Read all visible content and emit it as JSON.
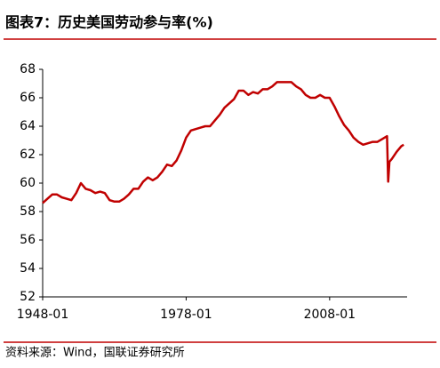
{
  "chart_data": {
    "type": "line",
    "title": "图表7：历史美国劳动参与率(%)",
    "source": "资料来源：Wind，国联证券研究所",
    "color": "#c00000",
    "x": [
      1948,
      1949,
      1950,
      1951,
      1952,
      1953,
      1954,
      1955,
      1956,
      1957,
      1958,
      1959,
      1960,
      1961,
      1962,
      1963,
      1964,
      1965,
      1966,
      1967,
      1968,
      1969,
      1970,
      1971,
      1972,
      1973,
      1974,
      1975,
      1976,
      1977,
      1978,
      1979,
      1980,
      1981,
      1982,
      1983,
      1984,
      1985,
      1986,
      1987,
      1988,
      1989,
      1990,
      1991,
      1992,
      1993,
      1994,
      1995,
      1996,
      1997,
      1998,
      1999,
      2000,
      2001,
      2002,
      2003,
      2004,
      2005,
      2006,
      2007,
      2008,
      2009,
      2010,
      2011,
      2012,
      2013,
      2014,
      2015,
      2016,
      2017,
      2018,
      2019,
      2020,
      2020.25,
      2020.5,
      2021,
      2022,
      2023,
      2023.5
    ],
    "values": [
      58.6,
      58.9,
      59.2,
      59.2,
      59.0,
      58.9,
      58.8,
      59.3,
      60.0,
      59.6,
      59.5,
      59.3,
      59.4,
      59.3,
      58.8,
      58.7,
      58.7,
      58.9,
      59.2,
      59.6,
      59.6,
      60.1,
      60.4,
      60.2,
      60.4,
      60.8,
      61.3,
      61.2,
      61.6,
      62.3,
      63.2,
      63.7,
      63.8,
      63.9,
      64.0,
      64.0,
      64.4,
      64.8,
      65.3,
      65.6,
      65.9,
      66.5,
      66.5,
      66.2,
      66.4,
      66.3,
      66.6,
      66.6,
      66.8,
      67.1,
      67.1,
      67.1,
      67.1,
      66.8,
      66.6,
      66.2,
      66.0,
      66.0,
      66.2,
      66.0,
      66.0,
      65.4,
      64.7,
      64.1,
      63.7,
      63.2,
      62.9,
      62.7,
      62.8,
      62.9,
      62.9,
      63.1,
      63.3,
      60.1,
      61.5,
      61.7,
      62.2,
      62.6,
      62.7
    ],
    "xlim": [
      1948,
      2024.2
    ],
    "xticks": [
      {
        "value": 1948,
        "label": "1948-01"
      },
      {
        "value": 1978,
        "label": "1978-01"
      },
      {
        "value": 2008,
        "label": "2008-01"
      }
    ],
    "ylim": [
      52,
      68
    ],
    "yticks": [
      52,
      54,
      56,
      58,
      60,
      62,
      64,
      66,
      68
    ]
  }
}
